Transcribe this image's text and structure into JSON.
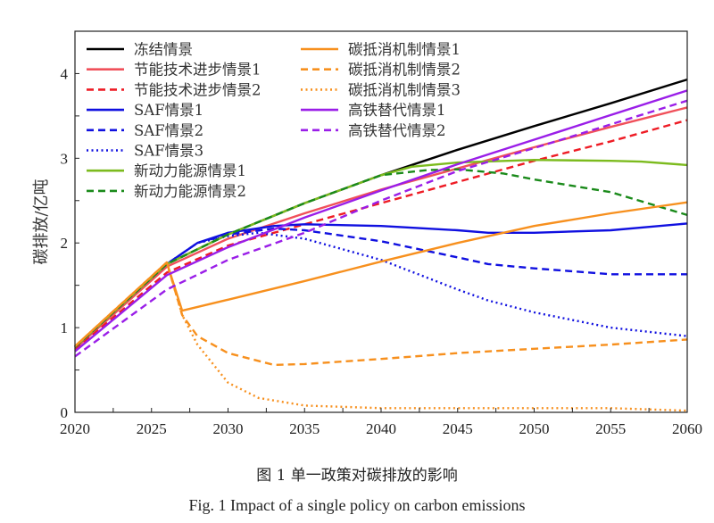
{
  "chart_data": {
    "type": "line",
    "title": "",
    "xlabel": "",
    "ylabel": "碳排放/亿吨",
    "xlim": [
      2020,
      2060
    ],
    "ylim": [
      0,
      4.5
    ],
    "xticks": [
      2020,
      2025,
      2030,
      2035,
      2040,
      2045,
      2050,
      2055,
      2060
    ],
    "yticks": [
      0,
      1,
      2,
      3,
      4
    ],
    "grid": false,
    "legend_position": "top-left",
    "series": [
      {
        "name": "冻结情景",
        "color": "#000000",
        "style": "solid",
        "x": [
          2020,
          2026,
          2030,
          2035,
          2040,
          2045,
          2050,
          2055,
          2060
        ],
        "y": [
          0.77,
          1.75,
          2.1,
          2.47,
          2.8,
          3.1,
          3.38,
          3.65,
          3.93
        ]
      },
      {
        "name": "节能技术进步情景1",
        "color": "#f0505a",
        "style": "solid",
        "x": [
          2020,
          2026,
          2030,
          2035,
          2040,
          2045,
          2050,
          2055,
          2060
        ],
        "y": [
          0.75,
          1.72,
          2.05,
          2.35,
          2.63,
          2.88,
          3.13,
          3.37,
          3.6
        ]
      },
      {
        "name": "节能技术进步情景2",
        "color": "#ee1c25",
        "style": "dashed",
        "x": [
          2020,
          2026,
          2030,
          2035,
          2040,
          2045,
          2050,
          2055,
          2060
        ],
        "y": [
          0.74,
          1.65,
          1.97,
          2.22,
          2.47,
          2.72,
          2.97,
          3.2,
          3.45
        ]
      },
      {
        "name": "SAF情景1",
        "color": "#1010e0",
        "style": "solid",
        "x": [
          2020,
          2026,
          2028,
          2030,
          2033,
          2035,
          2040,
          2045,
          2047,
          2050,
          2055,
          2060
        ],
        "y": [
          0.77,
          1.75,
          2.0,
          2.12,
          2.2,
          2.22,
          2.2,
          2.15,
          2.12,
          2.12,
          2.15,
          2.23
        ]
      },
      {
        "name": "SAF情景2",
        "color": "#1010e0",
        "style": "dashed",
        "x": [
          2020,
          2026,
          2028,
          2030,
          2033,
          2035,
          2040,
          2045,
          2047,
          2050,
          2055,
          2060
        ],
        "y": [
          0.77,
          1.75,
          2.0,
          2.1,
          2.17,
          2.15,
          2.02,
          1.83,
          1.75,
          1.7,
          1.63,
          1.63
        ]
      },
      {
        "name": "SAF情景3",
        "color": "#1010e0",
        "style": "dotted",
        "x": [
          2020,
          2026,
          2028,
          2030,
          2032,
          2035,
          2040,
          2045,
          2047,
          2050,
          2055,
          2060
        ],
        "y": [
          0.77,
          1.75,
          2.0,
          2.08,
          2.12,
          2.05,
          1.8,
          1.45,
          1.32,
          1.18,
          1.0,
          0.9
        ]
      },
      {
        "name": "新动力能源情景1",
        "color": "#7cbb1e",
        "style": "solid",
        "x": [
          2020,
          2026,
          2030,
          2035,
          2040,
          2042,
          2045,
          2050,
          2055,
          2057,
          2060
        ],
        "y": [
          0.77,
          1.75,
          2.1,
          2.47,
          2.8,
          2.9,
          2.95,
          2.98,
          2.97,
          2.96,
          2.92
        ]
      },
      {
        "name": "新动力能源情景2",
        "color": "#1a8a1a",
        "style": "dashed",
        "x": [
          2020,
          2026,
          2030,
          2035,
          2040,
          2043,
          2045,
          2048,
          2050,
          2055,
          2060
        ],
        "y": [
          0.77,
          1.75,
          2.1,
          2.47,
          2.8,
          2.86,
          2.87,
          2.82,
          2.75,
          2.6,
          2.33
        ]
      },
      {
        "name": "碳抵消机制情景1",
        "color": "#f7901e",
        "style": "solid",
        "x": [
          2020,
          2026,
          2027,
          2030,
          2035,
          2040,
          2045,
          2050,
          2055,
          2060
        ],
        "y": [
          0.78,
          1.77,
          1.2,
          1.33,
          1.55,
          1.78,
          2.0,
          2.2,
          2.35,
          2.48
        ]
      },
      {
        "name": "碳抵消机制情景2",
        "color": "#f7901e",
        "style": "dashed",
        "x": [
          2020,
          2026,
          2027,
          2028,
          2030,
          2033,
          2035,
          2040,
          2045,
          2050,
          2055,
          2060
        ],
        "y": [
          0.78,
          1.77,
          1.15,
          0.9,
          0.7,
          0.56,
          0.57,
          0.63,
          0.7,
          0.75,
          0.8,
          0.86
        ]
      },
      {
        "name": "碳抵消机制情景3",
        "color": "#f7901e",
        "style": "dotted",
        "x": [
          2020,
          2026,
          2027,
          2028,
          2030,
          2032,
          2035,
          2040,
          2050,
          2055,
          2060
        ],
        "y": [
          0.78,
          1.77,
          1.15,
          0.8,
          0.35,
          0.17,
          0.08,
          0.05,
          0.05,
          0.05,
          0.02
        ]
      },
      {
        "name": "高铁替代情景1",
        "color": "#9a1ee8",
        "style": "solid",
        "x": [
          2020,
          2026,
          2030,
          2035,
          2040,
          2045,
          2050,
          2055,
          2060
        ],
        "y": [
          0.72,
          1.62,
          1.95,
          2.3,
          2.62,
          2.93,
          3.22,
          3.51,
          3.8
        ]
      },
      {
        "name": "高铁替代情景2",
        "color": "#9a1ee8",
        "style": "dashed",
        "x": [
          2020,
          2026,
          2030,
          2035,
          2040,
          2045,
          2050,
          2055,
          2060
        ],
        "y": [
          0.66,
          1.45,
          1.8,
          2.12,
          2.5,
          2.85,
          3.12,
          3.4,
          3.68
        ]
      }
    ]
  },
  "caption_cn": "图 1  单一政策对碳排放的影响",
  "caption_en": "Fig. 1 Impact of a single policy on carbon emissions"
}
